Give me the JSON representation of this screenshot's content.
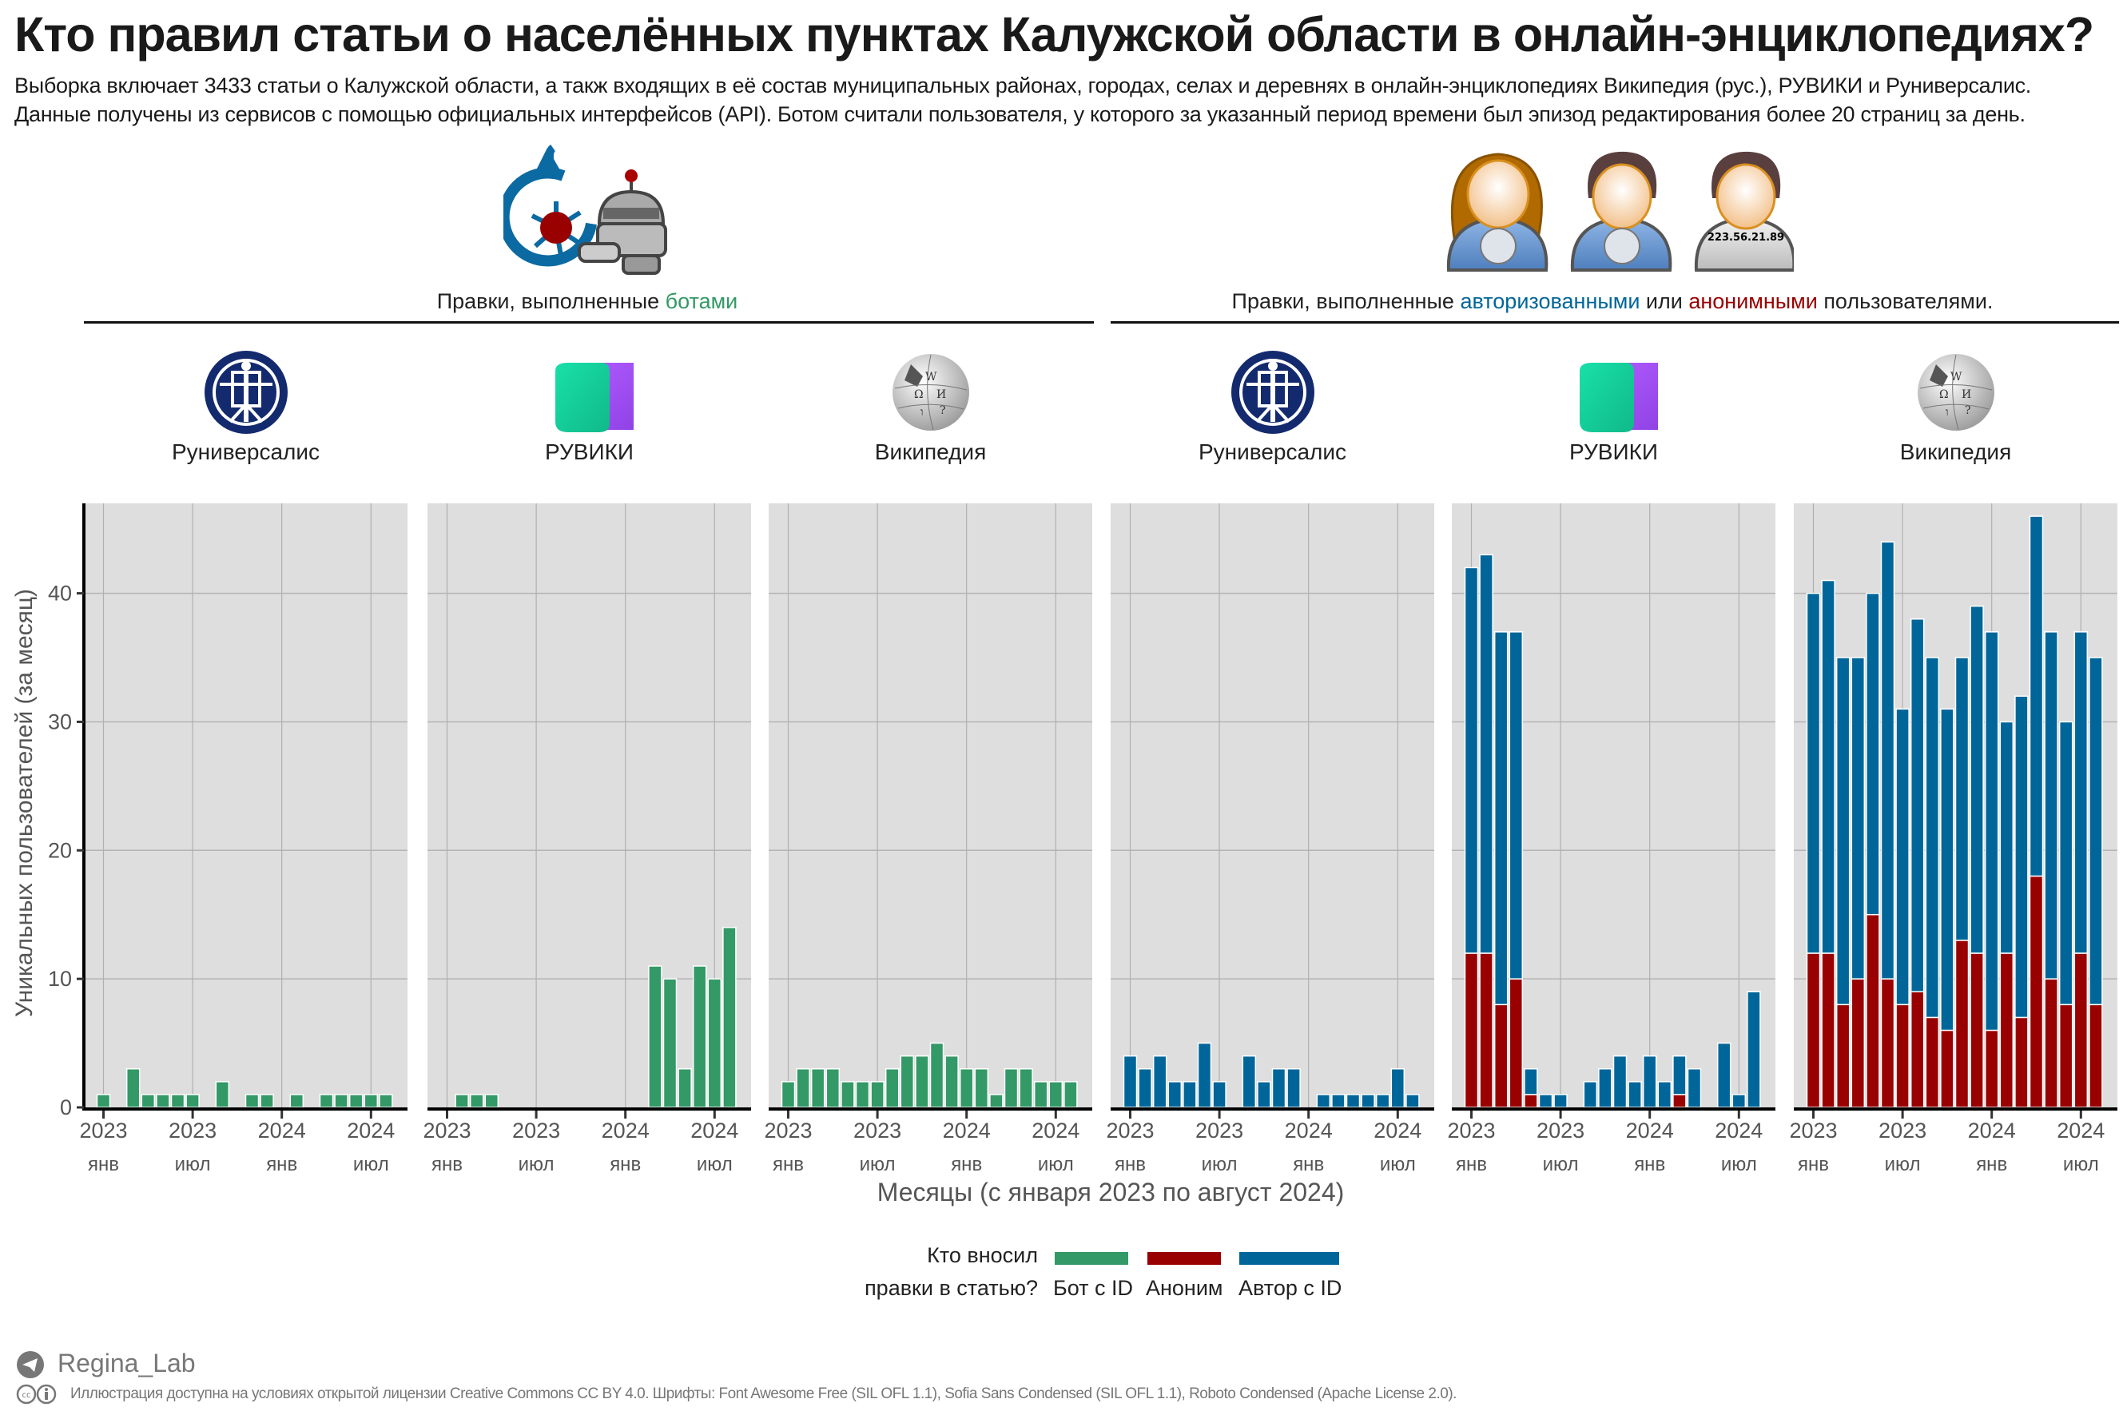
{
  "title": "Кто правил статьи о населённых пунктах Калужской области в онлайн-энциклопедиях?",
  "subtitle": [
    "Выборка включает 3433 статьи о Калужской области, а такж входящих в её состав муниципальных районах, городах, селах и деревнях в онлайн-энциклопедиях Википедия (рус.), РУВИКИ и Руниверсалис.",
    "Данные получены из сервисов с помощью официальных интерфейсов (API). Ботом считали пользователя, у которого за указанный период времени был эпизод редактирования более 20 страниц за день."
  ],
  "sections": {
    "bots": {
      "prefix": "Правки, выполненные ",
      "highlight": "ботами"
    },
    "humans": {
      "prefix": "Правки, выполненные ",
      "auth": "авторизованными",
      "middle": " или ",
      "anon": "анонимными",
      "suffix": " пользователями."
    }
  },
  "avatar_ip": "223.56.21.89",
  "colors": {
    "bot": "#339966",
    "anon": "#990000",
    "auth": "#006699",
    "panel_bg": "#dedede"
  },
  "chart_data": {
    "type": "bar",
    "stacked": true,
    "x": [
      "2023-01",
      "2023-02",
      "2023-03",
      "2023-04",
      "2023-05",
      "2023-06",
      "2023-07",
      "2023-08",
      "2023-09",
      "2023-10",
      "2023-11",
      "2023-12",
      "2024-01",
      "2024-02",
      "2024-03",
      "2024-04",
      "2024-05",
      "2024-06",
      "2024-07",
      "2024-08"
    ],
    "xticks": [
      {
        "index": 0,
        "year": "2023",
        "month": "янв"
      },
      {
        "index": 6,
        "year": "2023",
        "month": "июл"
      },
      {
        "index": 12,
        "year": "2024",
        "month": "янв"
      },
      {
        "index": 18,
        "year": "2024",
        "month": "июл"
      }
    ],
    "yticks": [
      0,
      10,
      20,
      30,
      40
    ],
    "ylim": [
      0,
      47
    ],
    "xlabel": "Месяцы (с января 2023 по август 2024)",
    "ylabel": "Уникальных пользователей (за месяц)",
    "grid": true,
    "panels": [
      {
        "platform": "Руниверсалис",
        "logo": "runiversalis-logo",
        "group": "bots",
        "series": [
          {
            "name": "Бот с ID",
            "key": "bot",
            "values": [
              1,
              0,
              3,
              1,
              1,
              1,
              1,
              0,
              2,
              0,
              1,
              1,
              0,
              1,
              0,
              1,
              1,
              1,
              1,
              1
            ]
          }
        ]
      },
      {
        "platform": "РУВИКИ",
        "logo": "ruwiki-logo",
        "group": "bots",
        "series": [
          {
            "name": "Бот с ID",
            "key": "bot",
            "values": [
              0,
              1,
              1,
              1,
              0,
              0,
              0,
              0,
              0,
              0,
              0,
              0,
              0,
              0,
              11,
              10,
              3,
              11,
              10,
              14
            ]
          }
        ]
      },
      {
        "platform": "Википедия",
        "logo": "wikipedia-logo",
        "group": "bots",
        "series": [
          {
            "name": "Бот с ID",
            "key": "bot",
            "values": [
              2,
              3,
              3,
              3,
              2,
              2,
              2,
              3,
              4,
              4,
              5,
              4,
              3,
              3,
              1,
              3,
              3,
              2,
              2,
              2
            ]
          }
        ]
      },
      {
        "platform": "Руниверсалис",
        "logo": "runiversalis-logo",
        "group": "humans",
        "series": [
          {
            "name": "Аноним",
            "key": "anon",
            "values": [
              0,
              0,
              0,
              0,
              0,
              0,
              0,
              0,
              0,
              0,
              0,
              0,
              0,
              0,
              0,
              0,
              0,
              0,
              0,
              0
            ]
          },
          {
            "name": "Автор с ID",
            "key": "auth",
            "values": [
              4,
              3,
              4,
              2,
              2,
              5,
              2,
              0,
              4,
              2,
              3,
              3,
              0,
              1,
              1,
              1,
              1,
              1,
              3,
              1
            ]
          }
        ]
      },
      {
        "platform": "РУВИКИ",
        "logo": "ruwiki-logo",
        "group": "humans",
        "series": [
          {
            "name": "Аноним",
            "key": "anon",
            "values": [
              12,
              12,
              8,
              10,
              1,
              0,
              0,
              0,
              0,
              0,
              0,
              0,
              0,
              0,
              1,
              0,
              0,
              0,
              0,
              0
            ]
          },
          {
            "name": "Автор с ID",
            "key": "auth",
            "values": [
              30,
              31,
              29,
              27,
              2,
              1,
              1,
              0,
              2,
              3,
              4,
              2,
              4,
              2,
              3,
              3,
              0,
              5,
              1,
              9
            ]
          }
        ]
      },
      {
        "platform": "Википедия",
        "logo": "wikipedia-logo",
        "group": "humans",
        "series": [
          {
            "name": "Аноним",
            "key": "anon",
            "values": [
              12,
              12,
              8,
              10,
              15,
              10,
              8,
              9,
              7,
              6,
              13,
              12,
              6,
              12,
              7,
              18,
              10,
              8,
              12,
              8
            ]
          },
          {
            "name": "Автор с ID",
            "key": "auth",
            "values": [
              28,
              29,
              27,
              25,
              25,
              34,
              23,
              29,
              28,
              25,
              22,
              27,
              31,
              18,
              25,
              28,
              27,
              22,
              25,
              27
            ]
          }
        ]
      }
    ]
  },
  "legend": {
    "title_line1": "Кто вносил",
    "title_line2": "правки в статью?",
    "items": [
      {
        "label": "Бот с ID",
        "color": "#339966"
      },
      {
        "label": "Аноним",
        "color": "#990000"
      },
      {
        "label": "Автор с ID",
        "color": "#006699"
      }
    ]
  },
  "footer": {
    "author": "Regina_Lab",
    "license": "Иллюстрация доступна на условиях открытой лицензии Creative Commons CC BY 4.0. Шрифты: Font Awesome Free (SIL OFL 1.1), Sofia Sans Condensed (SIL OFL 1.1), Roboto Condensed (Apache License 2.0)."
  }
}
